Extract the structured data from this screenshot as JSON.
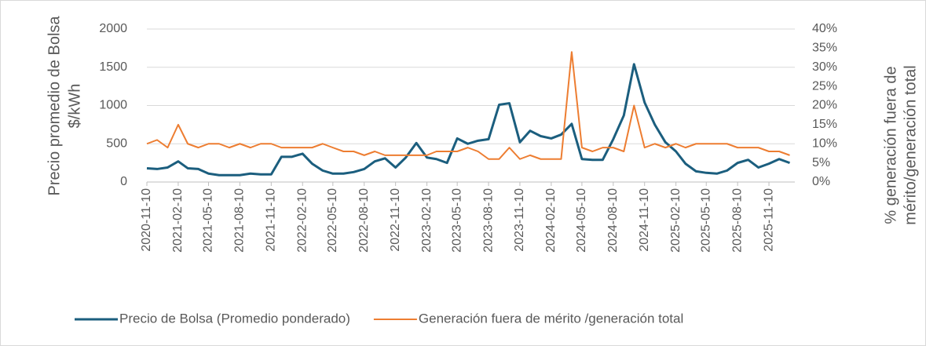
{
  "chart_data": {
    "type": "line",
    "ylabel": [
      "Precio promedio de Bolsa",
      "$/kWh"
    ],
    "y2label": [
      "% generación fuera de",
      "mérito/generación total"
    ],
    "x": [
      "2020-11-10",
      "2020-12-10",
      "2021-01-10",
      "2021-02-10",
      "2021-03-10",
      "2021-04-10",
      "2021-05-10",
      "2021-06-10",
      "2021-07-10",
      "2021-08-10",
      "2021-09-10",
      "2021-10-10",
      "2021-11-10",
      "2021-12-10",
      "2022-01-10",
      "2022-02-10",
      "2022-03-10",
      "2022-04-10",
      "2022-05-10",
      "2022-06-10",
      "2022-07-10",
      "2022-08-10",
      "2022-09-10",
      "2022-10-10",
      "2022-11-10",
      "2022-12-10",
      "2023-01-10",
      "2023-02-10",
      "2023-03-10",
      "2023-04-10",
      "2023-05-10",
      "2023-06-10",
      "2023-07-10",
      "2023-08-10",
      "2023-09-10",
      "2023-10-10",
      "2023-11-10",
      "2023-12-10",
      "2024-01-10",
      "2024-02-10",
      "2024-03-10",
      "2024-04-10",
      "2024-05-10",
      "2024-06-10",
      "2024-07-10",
      "2024-08-10",
      "2024-09-10",
      "2024-10-10",
      "2024-11-10",
      "2024-12-10",
      "2025-01-10",
      "2025-02-10",
      "2025-03-10",
      "2025-04-10",
      "2025-05-10",
      "2025-06-10",
      "2025-07-10",
      "2025-08-10",
      "2025-09-10",
      "2025-10-10",
      "2025-11-10",
      "2025-12-10",
      "2026-01-10"
    ],
    "series": [
      {
        "name": "Precio de Bolsa (Promedio ponderado)",
        "color": "#1b5e7e",
        "values": [
          180,
          170,
          190,
          270,
          180,
          170,
          110,
          90,
          90,
          90,
          110,
          100,
          100,
          330,
          330,
          370,
          240,
          150,
          110,
          110,
          130,
          170,
          270,
          310,
          190,
          320,
          510,
          320,
          300,
          250,
          570,
          500,
          540,
          560,
          1010,
          1030,
          520,
          670,
          600,
          570,
          620,
          760,
          300,
          290,
          290,
          560,
          870,
          1540,
          1040,
          750,
          520,
          400,
          240,
          140,
          120,
          110,
          150,
          250,
          290,
          190,
          240,
          300,
          250
        ]
      },
      {
        "name": "Generación fuera de mérito /generación total",
        "color": "#ed7d31",
        "axis": "y2",
        "values": [
          10,
          11,
          9,
          15,
          10,
          9,
          10,
          10,
          9,
          10,
          9,
          10,
          10,
          9,
          9,
          9,
          9,
          10,
          9,
          8,
          8,
          7,
          8,
          7,
          7,
          7,
          7,
          7,
          8,
          8,
          8,
          9,
          8,
          6,
          6,
          9,
          6,
          7,
          6,
          6,
          6,
          34,
          9,
          8,
          9,
          9,
          8,
          20,
          9,
          10,
          9,
          10,
          9,
          10,
          10,
          10,
          10,
          9,
          9,
          9,
          8,
          8,
          7
        ]
      }
    ],
    "xlim": [
      "2020-11-10",
      "2026-01-25"
    ],
    "xticks": [
      "2020-11-10",
      "2021-02-10",
      "2021-05-10",
      "2021-08-10",
      "2021-11-10",
      "2022-02-10",
      "2022-05-10",
      "2022-08-10",
      "2022-11-10",
      "2023-02-10",
      "2023-05-10",
      "2023-08-10",
      "2023-11-10",
      "2024-02-10",
      "2024-05-10",
      "2024-08-10",
      "2024-11-10",
      "2025-02-10",
      "2025-05-10",
      "2025-08-10",
      "2025-11-10"
    ],
    "ylim": [
      0,
      2000
    ],
    "yticks": [
      0,
      500,
      1000,
      1500,
      2000
    ],
    "y2lim": [
      0,
      40
    ],
    "y2ticks": [
      {
        "value": 0,
        "label": "0%"
      },
      {
        "value": 5,
        "label": "5%"
      },
      {
        "value": 10,
        "label": "10%"
      },
      {
        "value": 15,
        "label": "15%"
      },
      {
        "value": 20,
        "label": "20%"
      },
      {
        "value": 25,
        "label": "25%"
      },
      {
        "value": 30,
        "label": "30%"
      },
      {
        "value": 35,
        "label": "35%"
      },
      {
        "value": 40,
        "label": "40%"
      }
    ],
    "grid": true,
    "legend": "bottom"
  }
}
